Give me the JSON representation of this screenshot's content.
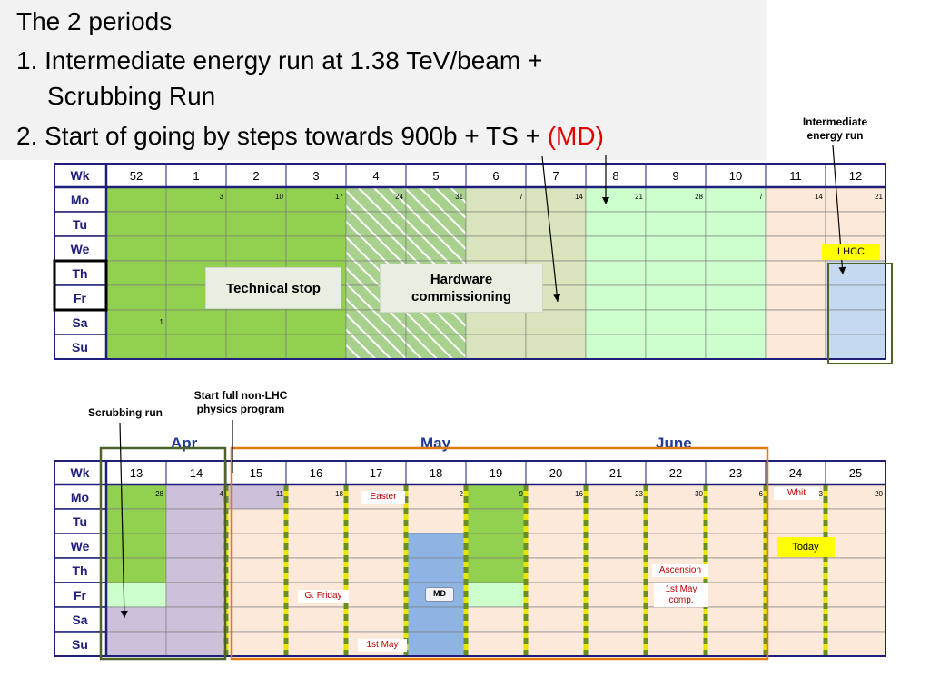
{
  "title": {
    "line1": "The 2 periods",
    "line2": "1. Intermediate energy run at 1.38 TeV/beam +",
    "line3": "Scrubbing Run",
    "line4_main": "2. Start of going by steps towards 900b + TS + ",
    "line4_red": "(MD)"
  },
  "notes": {
    "intermediate_1": "Intermediate",
    "intermediate_2": "energy run",
    "scrubbing": "Scrubbing run",
    "start_full_1": "Start  full non-LHC",
    "start_full_2": "physics program"
  },
  "months": {
    "apr": "Apr",
    "may": "May",
    "june": "June"
  },
  "days": [
    "Mo",
    "Tu",
    "We",
    "Th",
    "Fr",
    "Sa",
    "Su"
  ],
  "wk_label": "Wk",
  "colors": {
    "green": "#92d050",
    "green_hatch": "#a9d18e",
    "sage": "#d8e4bc",
    "light_green": "#ccffcc",
    "peach": "#fde9d9",
    "light_blue": "#c5d9f1",
    "lilac": "#ccc0da",
    "blue": "#8db4e2",
    "navy": "#1f1f7a",
    "orange": "#e07b10",
    "dark_green": "#4f6228"
  },
  "top": {
    "weeks": [
      "52",
      "1",
      "2",
      "3",
      "4",
      "5",
      "6",
      "7",
      "8",
      "9",
      "10",
      "11",
      "12"
    ],
    "dates": [
      "",
      "3",
      "10",
      "17",
      "24",
      "31",
      "7",
      "14",
      "21",
      "28",
      "7",
      "14",
      "21"
    ],
    "sa_date": "1",
    "technical_stop": "Technical stop",
    "hardware_1": "Hardware",
    "hardware_2": "commissioning",
    "lhcc": "LHCC"
  },
  "bottom": {
    "weeks": [
      "13",
      "14",
      "15",
      "16",
      "17",
      "18",
      "19",
      "20",
      "21",
      "22",
      "23",
      "24",
      "25"
    ],
    "dates": [
      "28",
      "4",
      "11",
      "18",
      "",
      "2",
      "9",
      "16",
      "23",
      "30",
      "6",
      "13",
      "20"
    ],
    "easter": "Easter",
    "whit": "Whit",
    "today": "Today",
    "ascension": "Ascension",
    "may_comp_1": "1st May",
    "may_comp_2": "comp.",
    "good_friday": "G. Friday",
    "md": "MD",
    "first_may": "1st May"
  }
}
